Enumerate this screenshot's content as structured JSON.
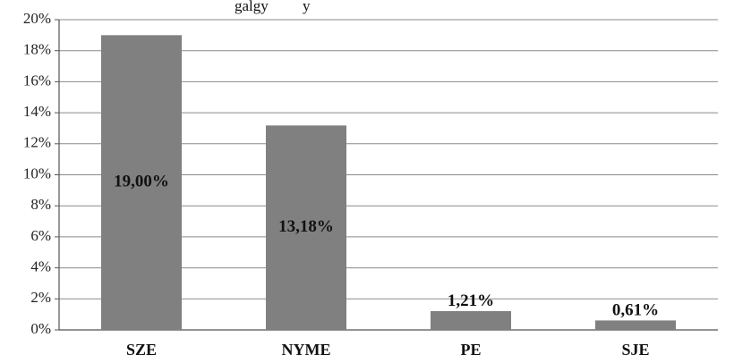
{
  "title_fragment": "galgy         y",
  "chart_data": {
    "type": "bar",
    "categories": [
      "SZE",
      "NYME",
      "PE",
      "SJE"
    ],
    "values": [
      19.0,
      13.18,
      1.21,
      0.61
    ],
    "data_labels": [
      "19,00%",
      "13,18%",
      "1,21%",
      "0,61%"
    ],
    "yticks": [
      "0%",
      "2%",
      "4%",
      "6%",
      "8%",
      "10%",
      "12%",
      "14%",
      "16%",
      "18%",
      "20%"
    ],
    "ylim": [
      0,
      20
    ],
    "grid": true,
    "legend": "none",
    "bar_color": "#808080"
  }
}
